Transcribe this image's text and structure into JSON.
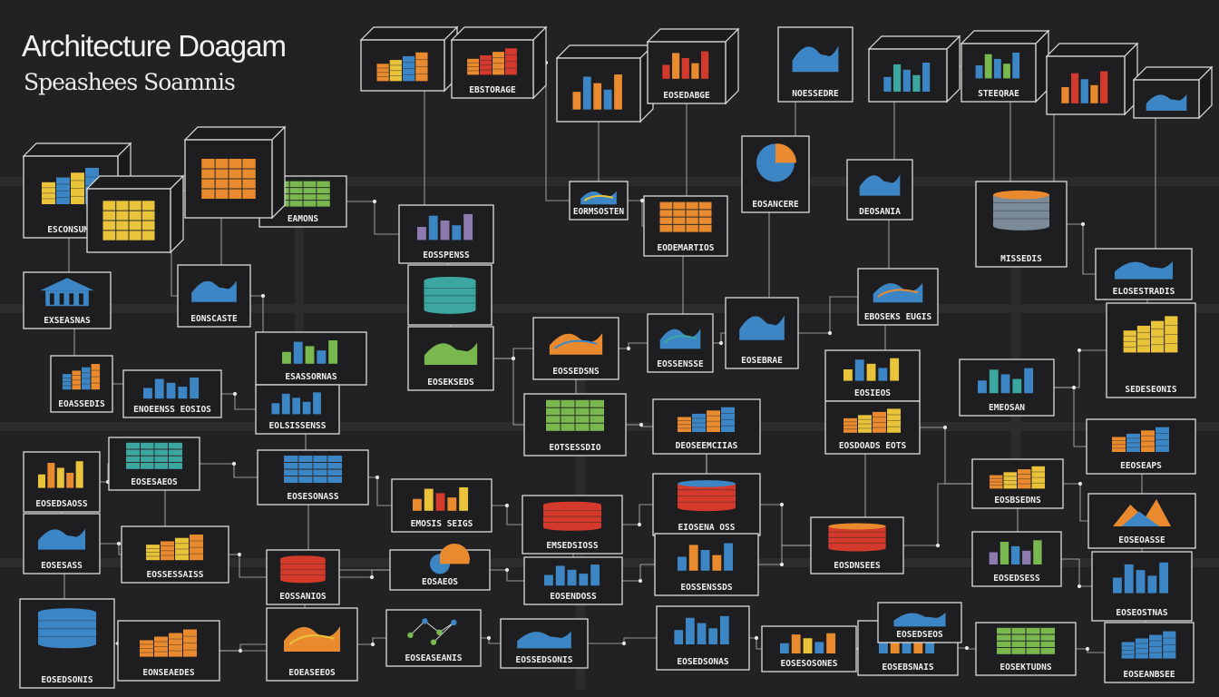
{
  "title": "Architecture Doagam",
  "subtitle": "Speashees Soamnis",
  "colors": {
    "background": "#222224",
    "line": "#d8d8d8",
    "blue": "#3d86c6",
    "orange": "#e98a2f",
    "red": "#d33a2c",
    "yellow": "#e9c43a",
    "green": "#78b84f",
    "teal": "#3ba7a0",
    "purple": "#8d7bb0",
    "grey": "#7b8a99"
  },
  "nodes": [
    {
      "id": "n1",
      "label": "",
      "icon": "stacked-bars-icon",
      "shape": "cube",
      "palette": [
        "orange",
        "yellow",
        "blue"
      ]
    },
    {
      "id": "n2",
      "label": "EBSTORAGE",
      "icon": "stacked-bars-icon",
      "shape": "cube",
      "palette": [
        "orange",
        "red"
      ]
    },
    {
      "id": "n3",
      "label": "",
      "icon": "bar-chart-icon",
      "shape": "cube",
      "palette": [
        "orange",
        "blue"
      ]
    },
    {
      "id": "n4",
      "label": "EOSEDABGE",
      "icon": "bar-chart-icon",
      "shape": "cube",
      "palette": [
        "red",
        "orange"
      ]
    },
    {
      "id": "n5",
      "label": "NOESSEDRE",
      "icon": "wave-icon",
      "shape": "box",
      "palette": [
        "blue"
      ]
    },
    {
      "id": "n6",
      "label": "",
      "icon": "bar-chart-icon",
      "shape": "cube",
      "palette": [
        "blue",
        "teal"
      ]
    },
    {
      "id": "n7",
      "label": "STEEQRAE",
      "icon": "bar-chart-icon",
      "shape": "cube",
      "palette": [
        "blue",
        "green"
      ]
    },
    {
      "id": "n8",
      "label": "",
      "icon": "bar-chart-icon",
      "shape": "cube",
      "palette": [
        "orange",
        "red",
        "blue"
      ]
    },
    {
      "id": "n9",
      "label": "",
      "icon": "wave-icon",
      "shape": "cube",
      "palette": [
        "blue"
      ]
    },
    {
      "id": "n10",
      "label": "ESCONSUMS",
      "icon": "stacked-bars-icon",
      "shape": "cube",
      "palette": [
        "yellow",
        "blue"
      ]
    },
    {
      "id": "n11",
      "label": "",
      "icon": "grid-icon",
      "shape": "cube",
      "palette": [
        "yellow"
      ]
    },
    {
      "id": "n12",
      "label": "EAMONS",
      "icon": "grid-icon",
      "shape": "box",
      "palette": [
        "green"
      ]
    },
    {
      "id": "n13",
      "label": "",
      "icon": "grid-icon",
      "shape": "cube",
      "palette": [
        "orange"
      ]
    },
    {
      "id": "n14",
      "label": "EOSSPENSS",
      "icon": "bar-chart-icon",
      "shape": "box",
      "palette": [
        "purple",
        "blue"
      ]
    },
    {
      "id": "n15",
      "label": "",
      "icon": "database-icon",
      "shape": "box",
      "palette": [
        "teal"
      ]
    },
    {
      "id": "n16",
      "label": "EODEMARTIOS",
      "icon": "grid-icon",
      "shape": "box",
      "palette": [
        "orange",
        "blue"
      ]
    },
    {
      "id": "n17",
      "label": "EORMSOSTEN",
      "icon": "wave-icon",
      "shape": "box",
      "palette": [
        "blue",
        "yellow"
      ]
    },
    {
      "id": "n18",
      "label": "EOSANCERE",
      "icon": "pie-icon",
      "shape": "box",
      "palette": [
        "blue"
      ]
    },
    {
      "id": "n19",
      "label": "DEOSANIA",
      "icon": "wave-icon",
      "shape": "box",
      "palette": [
        "blue"
      ]
    },
    {
      "id": "n20",
      "label": "MISSEDIS",
      "icon": "database-icon",
      "shape": "box",
      "palette": [
        "grey",
        "orange"
      ]
    },
    {
      "id": "n21",
      "label": "EONSCASTE",
      "icon": "wave-icon",
      "shape": "box",
      "palette": [
        "blue"
      ]
    },
    {
      "id": "n22",
      "label": "EXSEASNAS",
      "icon": "house-icon",
      "shape": "box",
      "palette": [
        "blue"
      ]
    },
    {
      "id": "n23",
      "label": "ESASSORNAS",
      "icon": "bar-chart-icon",
      "shape": "box",
      "palette": [
        "green",
        "blue"
      ]
    },
    {
      "id": "n24",
      "label": "EOSEKSEDS",
      "icon": "wave-icon",
      "shape": "box",
      "palette": [
        "green"
      ]
    },
    {
      "id": "n25",
      "label": "EOSSEDSNS",
      "icon": "wave-icon",
      "shape": "box",
      "palette": [
        "orange",
        "blue"
      ]
    },
    {
      "id": "n26",
      "label": "EOSSENSSE",
      "icon": "wave-icon",
      "shape": "box",
      "palette": [
        "blue",
        "teal"
      ]
    },
    {
      "id": "n27",
      "label": "EOSEBRAE",
      "icon": "wave-icon",
      "shape": "box",
      "palette": [
        "blue"
      ]
    },
    {
      "id": "n28",
      "label": "EBOSEKS EUGIS",
      "icon": "wave-icon",
      "shape": "box",
      "palette": [
        "blue",
        "orange"
      ]
    },
    {
      "id": "n29",
      "label": "ELOSESTRADIS",
      "icon": "wave-icon",
      "shape": "box",
      "palette": [
        "blue"
      ]
    },
    {
      "id": "n30",
      "label": "SEDESEONIS",
      "icon": "stacked-bars-icon",
      "shape": "box",
      "palette": [
        "yellow"
      ]
    },
    {
      "id": "n31",
      "label": "EOASSEDIS",
      "icon": "stacked-bars-icon",
      "shape": "box",
      "palette": [
        "blue",
        "orange"
      ]
    },
    {
      "id": "n32",
      "label": "ENOEENSS EOSIOS",
      "icon": "bar-chart-icon",
      "shape": "box",
      "palette": [
        "blue"
      ]
    },
    {
      "id": "n33",
      "label": "EOLSISSENSS",
      "icon": "bar-chart-icon",
      "shape": "box",
      "palette": [
        "blue"
      ]
    },
    {
      "id": "n34",
      "label": "EOTSESSDIO",
      "icon": "grid-icon",
      "shape": "box",
      "palette": [
        "green",
        "yellow"
      ]
    },
    {
      "id": "n35",
      "label": "DEOSEEMCIIAS",
      "icon": "stacked-bars-icon",
      "shape": "box",
      "palette": [
        "orange",
        "blue"
      ]
    },
    {
      "id": "n36",
      "label": "EOSIEOS",
      "icon": "bar-chart-icon",
      "shape": "box",
      "palette": [
        "yellow",
        "blue"
      ]
    },
    {
      "id": "n37",
      "label": "EMEOSAN",
      "icon": "bar-chart-icon",
      "shape": "box",
      "palette": [
        "blue",
        "teal"
      ]
    },
    {
      "id": "n38",
      "label": "EOSDOADS EOTS",
      "icon": "stacked-bars-icon",
      "shape": "box",
      "palette": [
        "orange",
        "yellow"
      ]
    },
    {
      "id": "n39",
      "label": "EEOSEAPS",
      "icon": "stacked-bars-icon",
      "shape": "box",
      "palette": [
        "orange",
        "blue"
      ]
    },
    {
      "id": "n40",
      "label": "EOSEDSAOSS",
      "icon": "bar-chart-icon",
      "shape": "box",
      "palette": [
        "yellow",
        "orange"
      ]
    },
    {
      "id": "n41",
      "label": "EOSESAEOS",
      "icon": "grid-icon",
      "shape": "box",
      "palette": [
        "teal",
        "green"
      ]
    },
    {
      "id": "n42",
      "label": "EOSESONASS",
      "icon": "grid-icon",
      "shape": "box",
      "palette": [
        "blue",
        "teal"
      ]
    },
    {
      "id": "n43",
      "label": "EMOSIS SEIGS",
      "icon": "bar-chart-icon",
      "shape": "box",
      "palette": [
        "orange",
        "yellow",
        "red"
      ]
    },
    {
      "id": "n44",
      "label": "EMSEDSIOSS",
      "icon": "database-icon",
      "shape": "box",
      "palette": [
        "red"
      ]
    },
    {
      "id": "n45",
      "label": "EIOSENA OSS",
      "icon": "database-icon",
      "shape": "box",
      "palette": [
        "red",
        "blue"
      ]
    },
    {
      "id": "n46",
      "label": "EOSDNSEES",
      "icon": "database-icon",
      "shape": "box",
      "palette": [
        "red",
        "orange"
      ]
    },
    {
      "id": "n47",
      "label": "EOSBSEDNS",
      "icon": "stacked-bars-icon",
      "shape": "box",
      "palette": [
        "orange",
        "yellow"
      ]
    },
    {
      "id": "n48",
      "label": "EOSEOASSE",
      "icon": "mountain-icon",
      "shape": "box",
      "palette": [
        "orange",
        "blue",
        "green"
      ]
    },
    {
      "id": "n49",
      "label": "EOSESASS",
      "icon": "wave-icon",
      "shape": "box",
      "palette": [
        "blue"
      ]
    },
    {
      "id": "n50",
      "label": "EOSSESSAISS",
      "icon": "stacked-bars-icon",
      "shape": "box",
      "palette": [
        "yellow",
        "orange"
      ]
    },
    {
      "id": "n51",
      "label": "EOSSANIOS",
      "icon": "database-icon",
      "shape": "box",
      "palette": [
        "red"
      ]
    },
    {
      "id": "n52",
      "label": "EOSAEOS",
      "icon": "pie-icon",
      "shape": "box",
      "palette": [
        "blue"
      ]
    },
    {
      "id": "n53",
      "label": "EOSENDOSS",
      "icon": "bar-chart-icon",
      "shape": "box",
      "palette": [
        "blue"
      ]
    },
    {
      "id": "n54",
      "label": "EOSSENSSDS",
      "icon": "bar-chart-icon",
      "shape": "box",
      "palette": [
        "blue",
        "orange"
      ]
    },
    {
      "id": "n55",
      "label": "EOSEDSESS",
      "icon": "bar-chart-icon",
      "shape": "box",
      "palette": [
        "purple",
        "green",
        "blue"
      ]
    },
    {
      "id": "n56",
      "label": "EOSEOSTNAS",
      "icon": "bar-chart-icon",
      "shape": "box",
      "palette": [
        "blue"
      ]
    },
    {
      "id": "n57",
      "label": "EOSEDSONIS",
      "icon": "database-icon",
      "shape": "box",
      "palette": [
        "blue"
      ]
    },
    {
      "id": "n58",
      "label": "EONSEAEDES",
      "icon": "stacked-bars-icon",
      "shape": "box",
      "palette": [
        "orange"
      ]
    },
    {
      "id": "n59",
      "label": "EOEASEEOS",
      "icon": "wave-icon",
      "shape": "box",
      "palette": [
        "orange",
        "yellow"
      ]
    },
    {
      "id": "n60",
      "label": "EOSEASEANIS",
      "icon": "network-icon",
      "shape": "box",
      "palette": [
        "green",
        "blue"
      ]
    },
    {
      "id": "n61",
      "label": "EOSSEDSONIS",
      "icon": "wave-icon",
      "shape": "box",
      "palette": [
        "blue"
      ]
    },
    {
      "id": "n62",
      "label": "EOSEDSONAS",
      "icon": "bar-chart-icon",
      "shape": "box",
      "palette": [
        "blue"
      ]
    },
    {
      "id": "n63",
      "label": "EOSESOSONES",
      "icon": "bar-chart-icon",
      "shape": "box",
      "palette": [
        "blue",
        "orange",
        "yellow"
      ]
    },
    {
      "id": "n64",
      "label": "EOSEBSNAIS",
      "icon": "bar-chart-icon",
      "shape": "box",
      "palette": [
        "blue",
        "orange"
      ]
    },
    {
      "id": "n65",
      "label": "EOSEKTUDNS",
      "icon": "grid-icon",
      "shape": "box",
      "palette": [
        "green",
        "teal"
      ]
    },
    {
      "id": "n66",
      "label": "EOSEANBSEE",
      "icon": "stacked-bars-icon",
      "shape": "box",
      "palette": [
        "blue"
      ]
    },
    {
      "id": "n67",
      "label": "EOSEDSEOS",
      "icon": "wave-icon",
      "shape": "box",
      "palette": [
        "blue"
      ]
    }
  ]
}
